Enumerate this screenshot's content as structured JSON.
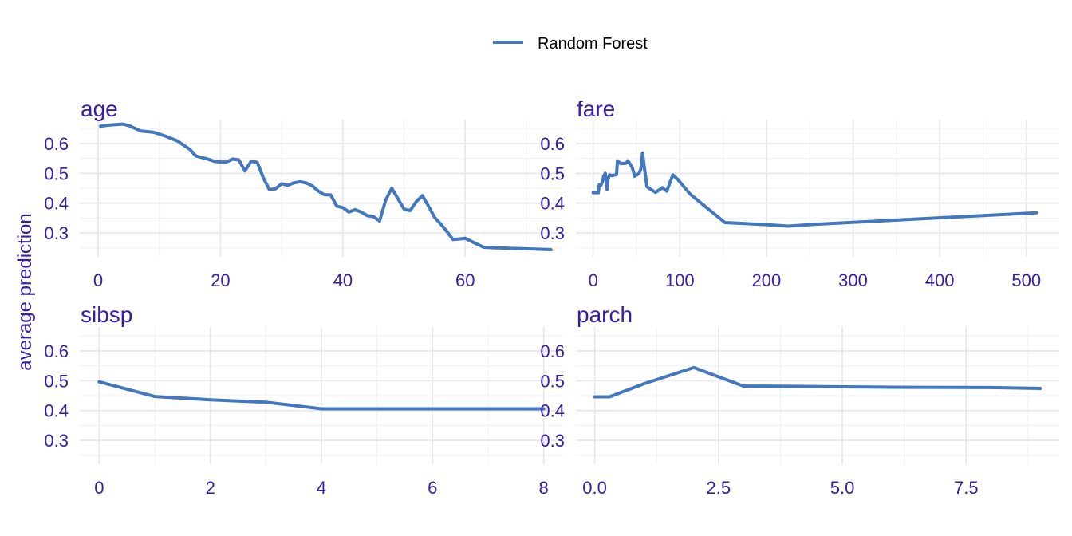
{
  "chart_data": {
    "type": "line",
    "ylabel": "average prediction",
    "legend": {
      "position": "top-center",
      "entries": [
        "Random Forest"
      ]
    },
    "colors": {
      "series": "#4378bf",
      "text": "#371ea3",
      "grid": "#e6e6ec"
    },
    "ylim": [
      0.22,
      0.68
    ],
    "yticks": [
      0.3,
      0.4,
      0.5,
      0.6
    ],
    "yticklabels": [
      "0.3",
      "0.4",
      "0.5",
      "0.6"
    ],
    "panels": [
      {
        "title": "age",
        "xlim": [
          -3,
          76
        ],
        "xticks": [
          0,
          20,
          40,
          60
        ],
        "xticklabels": [
          "0",
          "20",
          "40",
          "60"
        ],
        "series": [
          {
            "name": "Random Forest",
            "points": [
              [
                0.4,
                0.658
              ],
              [
                2,
                0.662
              ],
              [
                4,
                0.665
              ],
              [
                5,
                0.66
              ],
              [
                7,
                0.642
              ],
              [
                9,
                0.638
              ],
              [
                11,
                0.625
              ],
              [
                13,
                0.608
              ],
              [
                15,
                0.58
              ],
              [
                16,
                0.558
              ],
              [
                18,
                0.547
              ],
              [
                19,
                0.54
              ],
              [
                20,
                0.538
              ],
              [
                21,
                0.538
              ],
              [
                22,
                0.548
              ],
              [
                23,
                0.545
              ],
              [
                24,
                0.508
              ],
              [
                25,
                0.54
              ],
              [
                26,
                0.537
              ],
              [
                27,
                0.485
              ],
              [
                28,
                0.445
              ],
              [
                29,
                0.448
              ],
              [
                30,
                0.465
              ],
              [
                31,
                0.46
              ],
              [
                32,
                0.468
              ],
              [
                33,
                0.472
              ],
              [
                34,
                0.468
              ],
              [
                35,
                0.458
              ],
              [
                36,
                0.44
              ],
              [
                37,
                0.428
              ],
              [
                38,
                0.428
              ],
              [
                39,
                0.39
              ],
              [
                40,
                0.385
              ],
              [
                41,
                0.37
              ],
              [
                42,
                0.378
              ],
              [
                43,
                0.37
              ],
              [
                44,
                0.358
              ],
              [
                45,
                0.355
              ],
              [
                46,
                0.34
              ],
              [
                47,
                0.41
              ],
              [
                48,
                0.45
              ],
              [
                49,
                0.415
              ],
              [
                50,
                0.38
              ],
              [
                51,
                0.375
              ],
              [
                52,
                0.405
              ],
              [
                53,
                0.425
              ],
              [
                54,
                0.39
              ],
              [
                55,
                0.352
              ],
              [
                56,
                0.33
              ],
              [
                57,
                0.305
              ],
              [
                58,
                0.278
              ],
              [
                59,
                0.28
              ],
              [
                60,
                0.282
              ],
              [
                61,
                0.272
              ],
              [
                62,
                0.262
              ],
              [
                63,
                0.252
              ],
              [
                65,
                0.25
              ],
              [
                67,
                0.249
              ],
              [
                70,
                0.247
              ],
              [
                74,
                0.244
              ]
            ]
          }
        ]
      },
      {
        "title": "fare",
        "xlim": [
          -20,
          538
        ],
        "xticks": [
          0,
          100,
          200,
          300,
          400,
          500
        ],
        "xticklabels": [
          "0",
          "100",
          "200",
          "300",
          "400",
          "500"
        ],
        "series": [
          {
            "name": "Random Forest",
            "points": [
              [
                0,
                0.435
              ],
              [
                6,
                0.435
              ],
              [
                7,
                0.462
              ],
              [
                9,
                0.46
              ],
              [
                11,
                0.475
              ],
              [
                12,
                0.49
              ],
              [
                14,
                0.5
              ],
              [
                16,
                0.445
              ],
              [
                17,
                0.48
              ],
              [
                19,
                0.495
              ],
              [
                22,
                0.492
              ],
              [
                27,
                0.496
              ],
              [
                28,
                0.542
              ],
              [
                32,
                0.532
              ],
              [
                38,
                0.534
              ],
              [
                40,
                0.542
              ],
              [
                45,
                0.52
              ],
              [
                48,
                0.49
              ],
              [
                53,
                0.5
              ],
              [
                55,
                0.515
              ],
              [
                57,
                0.568
              ],
              [
                59,
                0.52
              ],
              [
                62,
                0.455
              ],
              [
                67,
                0.445
              ],
              [
                72,
                0.436
              ],
              [
                80,
                0.452
              ],
              [
                85,
                0.44
              ],
              [
                92,
                0.495
              ],
              [
                98,
                0.478
              ],
              [
                112,
                0.43
              ],
              [
                152,
                0.335
              ],
              [
                200,
                0.328
              ],
              [
                225,
                0.323
              ],
              [
                250,
                0.328
              ],
              [
                512,
                0.368
              ]
            ]
          }
        ]
      },
      {
        "title": "sibsp",
        "xlim": [
          -0.35,
          8.35
        ],
        "xticks": [
          0,
          2,
          4,
          6,
          8
        ],
        "xticklabels": [
          "0",
          "2",
          "4",
          "6",
          "8"
        ],
        "series": [
          {
            "name": "Random Forest",
            "points": [
              [
                0,
                0.496
              ],
              [
                1,
                0.447
              ],
              [
                2,
                0.436
              ],
              [
                3,
                0.428
              ],
              [
                4,
                0.406
              ],
              [
                5,
                0.406
              ],
              [
                6,
                0.406
              ],
              [
                7,
                0.406
              ],
              [
                8,
                0.406
              ]
            ]
          }
        ]
      },
      {
        "title": "parch",
        "xlim": [
          -0.38,
          9.38
        ],
        "xticks": [
          0,
          2.5,
          5.0,
          7.5
        ],
        "xticklabels": [
          "0.0",
          "2.5",
          "5.0",
          "7.5"
        ],
        "series": [
          {
            "name": "Random Forest",
            "points": [
              [
                0,
                0.446
              ],
              [
                0.3,
                0.446
              ],
              [
                1,
                0.49
              ],
              [
                2,
                0.544
              ],
              [
                3,
                0.482
              ],
              [
                4,
                0.481
              ],
              [
                6,
                0.478
              ],
              [
                8,
                0.477
              ],
              [
                9,
                0.474
              ]
            ]
          }
        ]
      }
    ]
  }
}
